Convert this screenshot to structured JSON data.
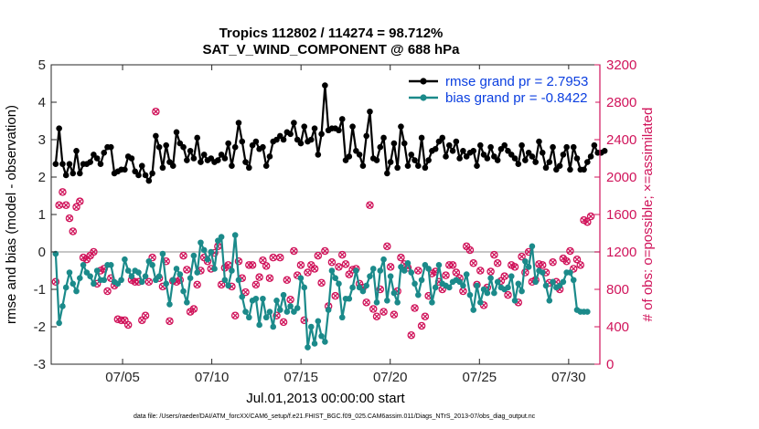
{
  "chart_data": {
    "type": "line",
    "title": "Tropics 112802 / 114274 = 98.712%",
    "subtitle": "SAT_V_WIND_COMPONENT @ 688 hPa",
    "xlabel": "Jul.01,2013 00:00:00 start",
    "ylabel": "rmse and bias (model - observation)",
    "y2label": "# of obs: o=possible; ×=assimilated",
    "footnote": "data file: /Users/raeder/DAI/ATM_forcXX/CAM6_setup/f.e21.FHIST_BGC.f09_025.CAM6assim.011/Diags_NTrS_2013-07/obs_diag_output.nc",
    "xlim": [
      1,
      31.75
    ],
    "xticks": [
      5,
      10,
      15,
      20,
      25,
      30
    ],
    "xtick_labels": [
      "07/05",
      "07/10",
      "07/15",
      "07/20",
      "07/25",
      "07/30"
    ],
    "ylim": [
      -3,
      5
    ],
    "yticks": [
      "-3",
      "-2",
      "-1",
      "0",
      "1",
      "2",
      "3",
      "4",
      "5"
    ],
    "y2lim": [
      0,
      3200
    ],
    "y2ticks": [
      "0",
      "400",
      "800",
      "1200",
      "1600",
      "2000",
      "2400",
      "2800",
      "3200"
    ],
    "grid": false,
    "legend_position": "top-right",
    "colors": {
      "rmse": "#000000",
      "bias": "#1b8a8a",
      "obs": "#d0135a",
      "zero_line": "#b4b4b4",
      "legend_text": "#0b3fe0"
    },
    "series": [
      {
        "name": "rmse grand pr = 2.7953",
        "axis": "left",
        "values": [
          2.35,
          3.3,
          2.35,
          2.05,
          2.35,
          2.1,
          2.7,
          2.1,
          2.35,
          2.35,
          2.4,
          2.6,
          2.5,
          2.35,
          2.65,
          2.8,
          2.8,
          2.1,
          2.15,
          2.2,
          2.2,
          2.55,
          2.5,
          2.15,
          2.05,
          2.3,
          2.05,
          1.9,
          2.1,
          3.1,
          2.8,
          2.25,
          2.85,
          2.4,
          2.3,
          3.2,
          2.9,
          2.8,
          2.45,
          2.7,
          2.5,
          3.05,
          2.4,
          2.6,
          2.45,
          2.5,
          2.4,
          2.45,
          2.6,
          2.5,
          2.9,
          2.3,
          2.8,
          3.45,
          2.95,
          2.4,
          2.25,
          2.85,
          2.95,
          2.75,
          2.8,
          2.3,
          2.55,
          2.95,
          3.0,
          3.1,
          3.0,
          3.2,
          3.15,
          3.45,
          3.0,
          2.9,
          3.35,
          2.95,
          3.0,
          3.3,
          2.6,
          3.15,
          4.45,
          3.25,
          3.3,
          3.3,
          3.25,
          3.55,
          2.45,
          2.55,
          3.35,
          2.7,
          2.6,
          2.3,
          3.1,
          3.75,
          2.5,
          2.45,
          2.8,
          3.05,
          2.1,
          2.4,
          2.9,
          2.25,
          3.35,
          2.9,
          2.3,
          2.6,
          2.45,
          2.3,
          3.05,
          2.25,
          2.45,
          2.7,
          2.75,
          2.95,
          3.05,
          2.55,
          2.85,
          2.7,
          2.95,
          2.5,
          2.7,
          2.55,
          2.65,
          2.7,
          2.3,
          2.85,
          2.6,
          2.5,
          2.8,
          2.55,
          2.45,
          2.75,
          2.85,
          2.7,
          2.6,
          2.5,
          2.35,
          2.85,
          2.45,
          2.65,
          2.55,
          2.4,
          2.95,
          2.65,
          2.25,
          2.4,
          2.8,
          2.2,
          2.3,
          2.6,
          2.8,
          2.2,
          2.8,
          2.5,
          2.2,
          2.2,
          2.4,
          2.55,
          2.85,
          2.65,
          2.65,
          2.7
        ]
      },
      {
        "name": "bias grand pr = -0.8422",
        "axis": "left",
        "values": [
          -0.05,
          -1.9,
          -1.45,
          -0.95,
          -0.55,
          -0.85,
          -1.05,
          -0.7,
          -0.35,
          -0.55,
          -0.65,
          -0.85,
          -0.5,
          -0.75,
          -0.75,
          -0.35,
          -0.35,
          -0.8,
          -0.85,
          -0.75,
          -0.2,
          -0.5,
          -0.65,
          -0.5,
          -0.55,
          -0.8,
          -0.65,
          -0.25,
          -0.35,
          -0.75,
          -0.65,
          -0.05,
          -0.85,
          -1.4,
          -0.75,
          -0.45,
          -0.6,
          -1.05,
          -1.35,
          -0.7,
          -0.1,
          -0.55,
          0.25,
          0.05,
          -0.2,
          0.0,
          -0.45,
          0.3,
          0.4,
          -0.75,
          -0.9,
          -0.5,
          0.45,
          -0.75,
          -1.2,
          -1.6,
          -1.75,
          -1.3,
          -1.25,
          -1.95,
          -1.25,
          -1.75,
          -1.6,
          -2.0,
          -1.3,
          -1.55,
          -1.15,
          -1.6,
          -1.45,
          -1.6,
          -1.5,
          -0.7,
          -0.95,
          -2.55,
          -2.0,
          -2.45,
          -1.85,
          -2.25,
          -2.4,
          -1.55,
          -0.5,
          -0.7,
          -0.85,
          -1.75,
          -1.25,
          -1.25,
          -0.95,
          -0.5,
          -0.95,
          -1.05,
          -0.9,
          -0.65,
          -0.45,
          -1.35,
          -0.5,
          -0.2,
          -1.3,
          -0.65,
          -1.1,
          -1.35,
          -0.4,
          -0.5,
          -0.3,
          -0.55,
          -0.85,
          -1.15,
          -0.75,
          -0.35,
          -0.45,
          -1.35,
          -0.95,
          -0.35,
          -0.85,
          -0.9,
          -0.95,
          -0.8,
          -0.75,
          -0.8,
          -0.9,
          -0.6,
          -1.15,
          -1.55,
          -0.9,
          -1.35,
          -1.0,
          -1.1,
          -0.7,
          -1.1,
          -0.8,
          -0.95,
          -1.0,
          -0.95,
          -0.65,
          -1.3,
          -0.85,
          -1.05,
          -0.25,
          -0.4,
          0.15,
          -0.8,
          -0.5,
          -0.55,
          -0.9,
          -1.3,
          -0.8,
          -0.95,
          -0.9,
          -0.8,
          -0.55,
          -0.55,
          -0.75,
          -1.55,
          -1.6,
          -1.6,
          -1.6
        ]
      },
      {
        "name": "",
        "axis": "right",
        "values": [
          880,
          1700,
          1840,
          1700,
          1560,
          1420,
          1680,
          1740,
          1140,
          1120,
          1160,
          1200,
          860,
          1000,
          1020,
          780,
          920,
          840,
          480,
          470,
          470,
          420,
          900,
          880,
          880,
          470,
          520,
          880,
          1140,
          2700,
          920,
          830,
          1100,
          460,
          890,
          880,
          900,
          1160,
          1010,
          560,
          590,
          850,
          1000,
          1140,
          1100,
          1020,
          1190,
          1260,
          850,
          1030,
          1060,
          830,
          520,
          1100,
          920,
          770,
          1060,
          1060,
          850,
          930,
          1110,
          1050,
          920,
          1140,
          520,
          1140,
          450,
          900,
          690,
          1210,
          950,
          1060,
          470,
          980,
          1060,
          1020,
          1160,
          870,
          1210,
          620,
          1090,
          730,
          1040,
          1170,
          1070,
          960,
          1010,
          1020,
          860,
          820,
          660,
          1700,
          590,
          510,
          800,
          560,
          1260,
          1040,
          530,
          780,
          1140,
          1070,
          1030,
          310,
          600,
          1000,
          410,
          510,
          730,
          970,
          990,
          880,
          800,
          950,
          1060,
          1060,
          980,
          920,
          780,
          1260,
          1220,
          1080,
          850,
          1000,
          630,
          820,
          990,
          1170,
          1080,
          890,
          940,
          740,
          1060,
          1040,
          660,
          1150,
          980,
          1200,
          880,
          900,
          1070,
          1060,
          980,
          870,
          1090,
          880,
          800,
          1130,
          1100,
          1210,
          1020,
          1120,
          1060,
          1540,
          1520,
          1580
        ]
      }
    ]
  }
}
